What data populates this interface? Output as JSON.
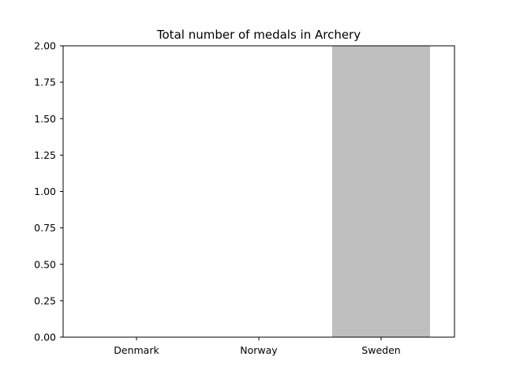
{
  "chart_data": {
    "type": "bar",
    "title": "Total number of medals in Archery",
    "xlabel": "",
    "ylabel": "",
    "categories": [
      "Denmark",
      "Norway",
      "Sweden"
    ],
    "values": [
      0,
      0,
      2
    ],
    "ylim": [
      0,
      2
    ],
    "yticks": [
      "0.00",
      "0.25",
      "0.50",
      "0.75",
      "1.00",
      "1.25",
      "1.50",
      "1.75",
      "2.00"
    ],
    "grid": false,
    "legend": "none",
    "colors": {
      "bar": "#bfbfbf",
      "axis": "#000000",
      "background": "#ffffff"
    }
  }
}
